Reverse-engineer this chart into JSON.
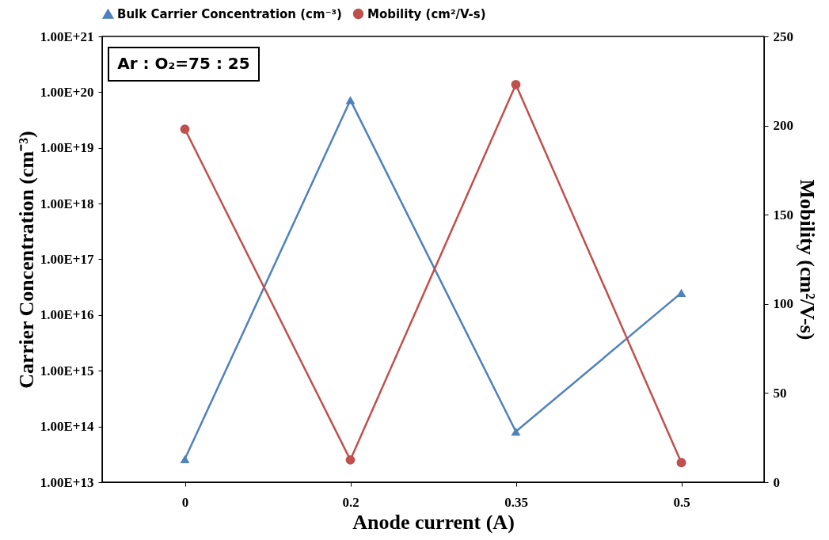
{
  "chart_data": {
    "type": "line",
    "xlabel": "Anode current (A)",
    "ylabel": "Carrier Concentration (cm⁻³)",
    "y2label": "Mobility (cm²/V-s)",
    "categories": [
      "0",
      "0.2",
      "0.35",
      "0.5"
    ],
    "series": [
      {
        "name": "Bulk Carrier Concentration (cm⁻³)",
        "color": "#4f81bd",
        "marker": "triangle",
        "values": [
          26000000000000.0,
          7.2e+19,
          81000000000000.0,
          2.5e+16
        ]
      },
      {
        "name": "Mobility (cm²/V-s)",
        "color": "#c0504d",
        "marker": "circle",
        "axis": "y2",
        "values": [
          198,
          12.5,
          223,
          11
        ]
      }
    ],
    "log": "y",
    "ylim": [
      10000000000000.0,
      1e+21
    ],
    "yticks": [
      {
        "value": 10000000000000.0,
        "label": "1.00E+13"
      },
      {
        "value": 100000000000000.0,
        "label": "1.00E+14"
      },
      {
        "value": 1000000000000000.0,
        "label": "1.00E+15"
      },
      {
        "value": 1e+16,
        "label": "1.00E+16"
      },
      {
        "value": 1e+17,
        "label": "1.00E+17"
      },
      {
        "value": 1e+18,
        "label": "1.00E+18"
      },
      {
        "value": 1e+19,
        "label": "1.00E+19"
      },
      {
        "value": 1e+20,
        "label": "1.00E+20"
      },
      {
        "value": 1e+21,
        "label": "1.00E+21"
      }
    ],
    "y2lim": [
      0,
      250
    ],
    "y2ticks": [
      0,
      50,
      100,
      150,
      200,
      250
    ],
    "legend": "top",
    "grid": false,
    "line_style": "solid",
    "annotations": [
      "Ar : O₂=75 : 25"
    ]
  }
}
